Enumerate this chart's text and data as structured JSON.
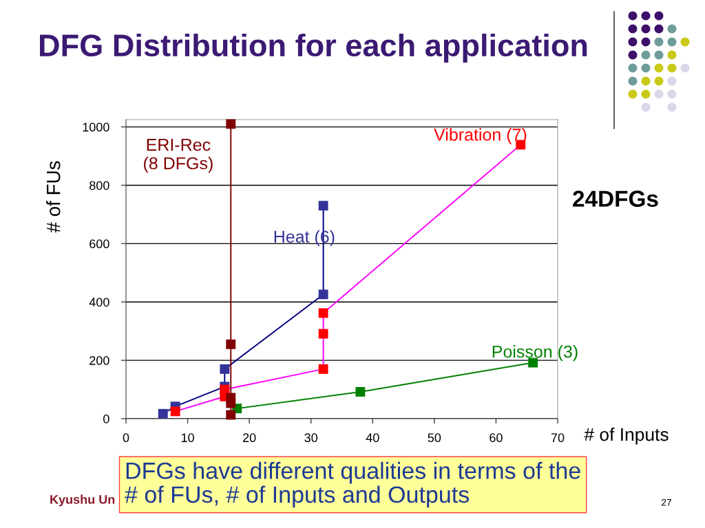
{
  "chart_data": {
    "type": "line",
    "title": "DFG Distribution for each application",
    "xlabel": "# of Inputs",
    "ylabel": "# of FUs",
    "xlim": [
      0,
      70
    ],
    "xticks": [
      0,
      10,
      20,
      30,
      40,
      50,
      60,
      70
    ],
    "ylim": [
      0,
      1025
    ],
    "yticks": [
      0,
      200,
      400,
      600,
      800,
      1000
    ],
    "grid": "y",
    "legend": false,
    "marker": "square",
    "line_style": "solid",
    "series": [
      {
        "name": "Poisson (3)",
        "color": "#008000",
        "x": [
          18,
          38,
          66
        ],
        "values": [
          35,
          92,
          192
        ]
      },
      {
        "name": "Heat (6)",
        "color": "#000080",
        "colors": [
          "#333399",
          "#333399",
          "#333399",
          "#333399",
          "#333399",
          "#333399"
        ],
        "x": [
          6,
          8,
          16,
          16,
          32,
          32
        ],
        "values": [
          17,
          42,
          110,
          170,
          426,
          730
        ]
      },
      {
        "name": "Vibration (7)",
        "color": "#ff00ff",
        "colors": [
          "#ff0000",
          "#ff0000",
          "#ff0000",
          "#ff0000",
          "#ff0000",
          "#ff0000",
          "#ff0000"
        ],
        "x": [
          8,
          16,
          16,
          32,
          32,
          32,
          64
        ],
        "values": [
          25,
          76,
          100,
          170,
          291,
          362,
          939
        ]
      },
      {
        "name": "ERI-Rec\n(8 DFGs)",
        "color": "#800000",
        "x": [
          17,
          17,
          17,
          17,
          17
        ],
        "values": [
          13,
          53,
          72,
          255,
          1010
        ]
      }
    ],
    "annotations": [
      "24DFGs",
      "DFGs have different qualities in terms of the\n# of FUs, # of Inputs and Outputs",
      "Kyushu Un",
      "27"
    ]
  }
}
